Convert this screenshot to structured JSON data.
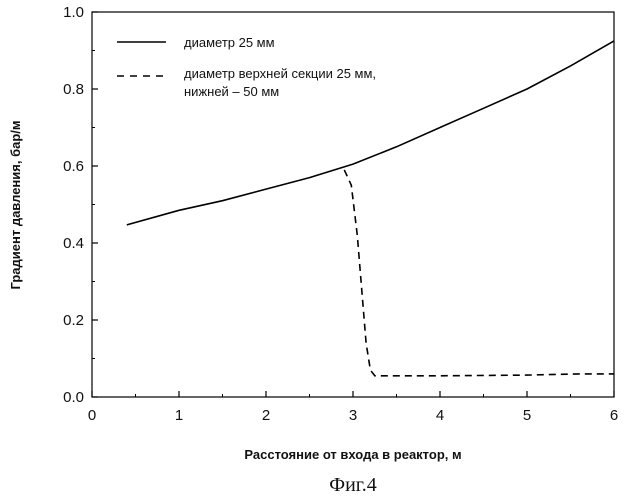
{
  "chart_data": {
    "type": "line",
    "xlabel": "Расстояние от входа в реактор, м",
    "ylabel": "Градиент давления, бар/м",
    "xlim": [
      0,
      6
    ],
    "ylim": [
      0.0,
      1.0
    ],
    "x_ticks": [
      0,
      1,
      2,
      3,
      4,
      5,
      6
    ],
    "y_ticks": [
      0.0,
      0.2,
      0.4,
      0.6,
      0.8,
      1.0
    ],
    "x_tick_labels": [
      "0",
      "1",
      "2",
      "3",
      "4",
      "5",
      "6"
    ],
    "y_tick_labels": [
      "0.0",
      "0.2",
      "0.4",
      "0.6",
      "0.8",
      "1.0"
    ],
    "grid": false,
    "legend_position": "top-left",
    "series": [
      {
        "name": "диаметр 25 мм",
        "style": "solid",
        "color": "#000000",
        "x": [
          0.4,
          1.0,
          1.5,
          2.0,
          2.5,
          3.0,
          3.5,
          4.0,
          4.5,
          5.0,
          5.5,
          6.0
        ],
        "y": [
          0.447,
          0.485,
          0.51,
          0.54,
          0.57,
          0.605,
          0.65,
          0.7,
          0.75,
          0.8,
          0.86,
          0.925
        ]
      },
      {
        "name_lines": [
          "диаметр верхней секции 25 мм,",
          "нижней – 50 мм"
        ],
        "style": "dashed",
        "color": "#000000",
        "x": [
          2.9,
          2.98,
          3.05,
          3.1,
          3.15,
          3.2,
          3.25,
          3.35,
          4.0,
          5.0,
          5.6,
          6.0
        ],
        "y": [
          0.59,
          0.55,
          0.42,
          0.28,
          0.14,
          0.07,
          0.055,
          0.055,
          0.055,
          0.057,
          0.06,
          0.06
        ]
      }
    ]
  },
  "caption": "Фиг.4"
}
